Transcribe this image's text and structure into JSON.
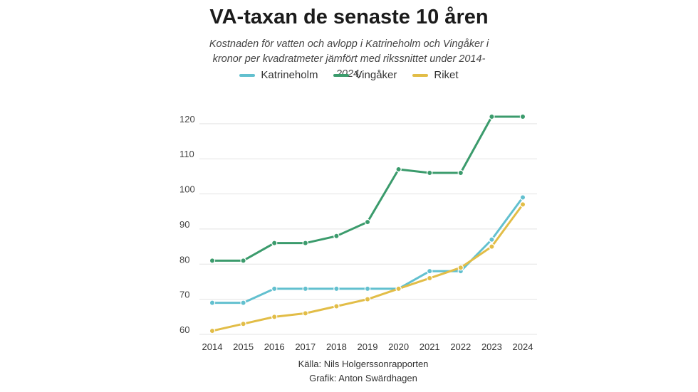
{
  "title": "VA-taxan de senaste 10 åren",
  "subtitle_line1": "Kostnaden för vatten och avlopp i Katrineholm och Vingåker i",
  "subtitle_line2": "kronor per kvadratmeter jämfört med rikssnittet under 2014-2024.",
  "source": "Källa: Nils Holgerssonrapporten",
  "credit": "Grafik: Anton Swärdhagen",
  "chart_data": {
    "type": "line",
    "title": "VA-taxan de senaste 10 åren",
    "xlabel": "",
    "ylabel": "",
    "x": [
      2014,
      2015,
      2016,
      2017,
      2018,
      2019,
      2020,
      2021,
      2022,
      2023,
      2024
    ],
    "ylim": [
      60,
      122
    ],
    "yticks": [
      60,
      70,
      80,
      90,
      100,
      110,
      120
    ],
    "grid": true,
    "legend_position": "top-center",
    "series": [
      {
        "name": "Katrineholm",
        "color": "#62c0cf",
        "values": [
          69,
          69,
          73,
          73,
          73,
          73,
          73,
          78,
          78,
          87,
          99
        ]
      },
      {
        "name": "Vingåker",
        "color": "#3b9b6c",
        "values": [
          81,
          81,
          86,
          86,
          88,
          92,
          107,
          106,
          106,
          122,
          122
        ]
      },
      {
        "name": "Riket",
        "color": "#e2bd47",
        "values": [
          61,
          63,
          65,
          66,
          68,
          70,
          73,
          76,
          79,
          85,
          97
        ]
      }
    ]
  }
}
